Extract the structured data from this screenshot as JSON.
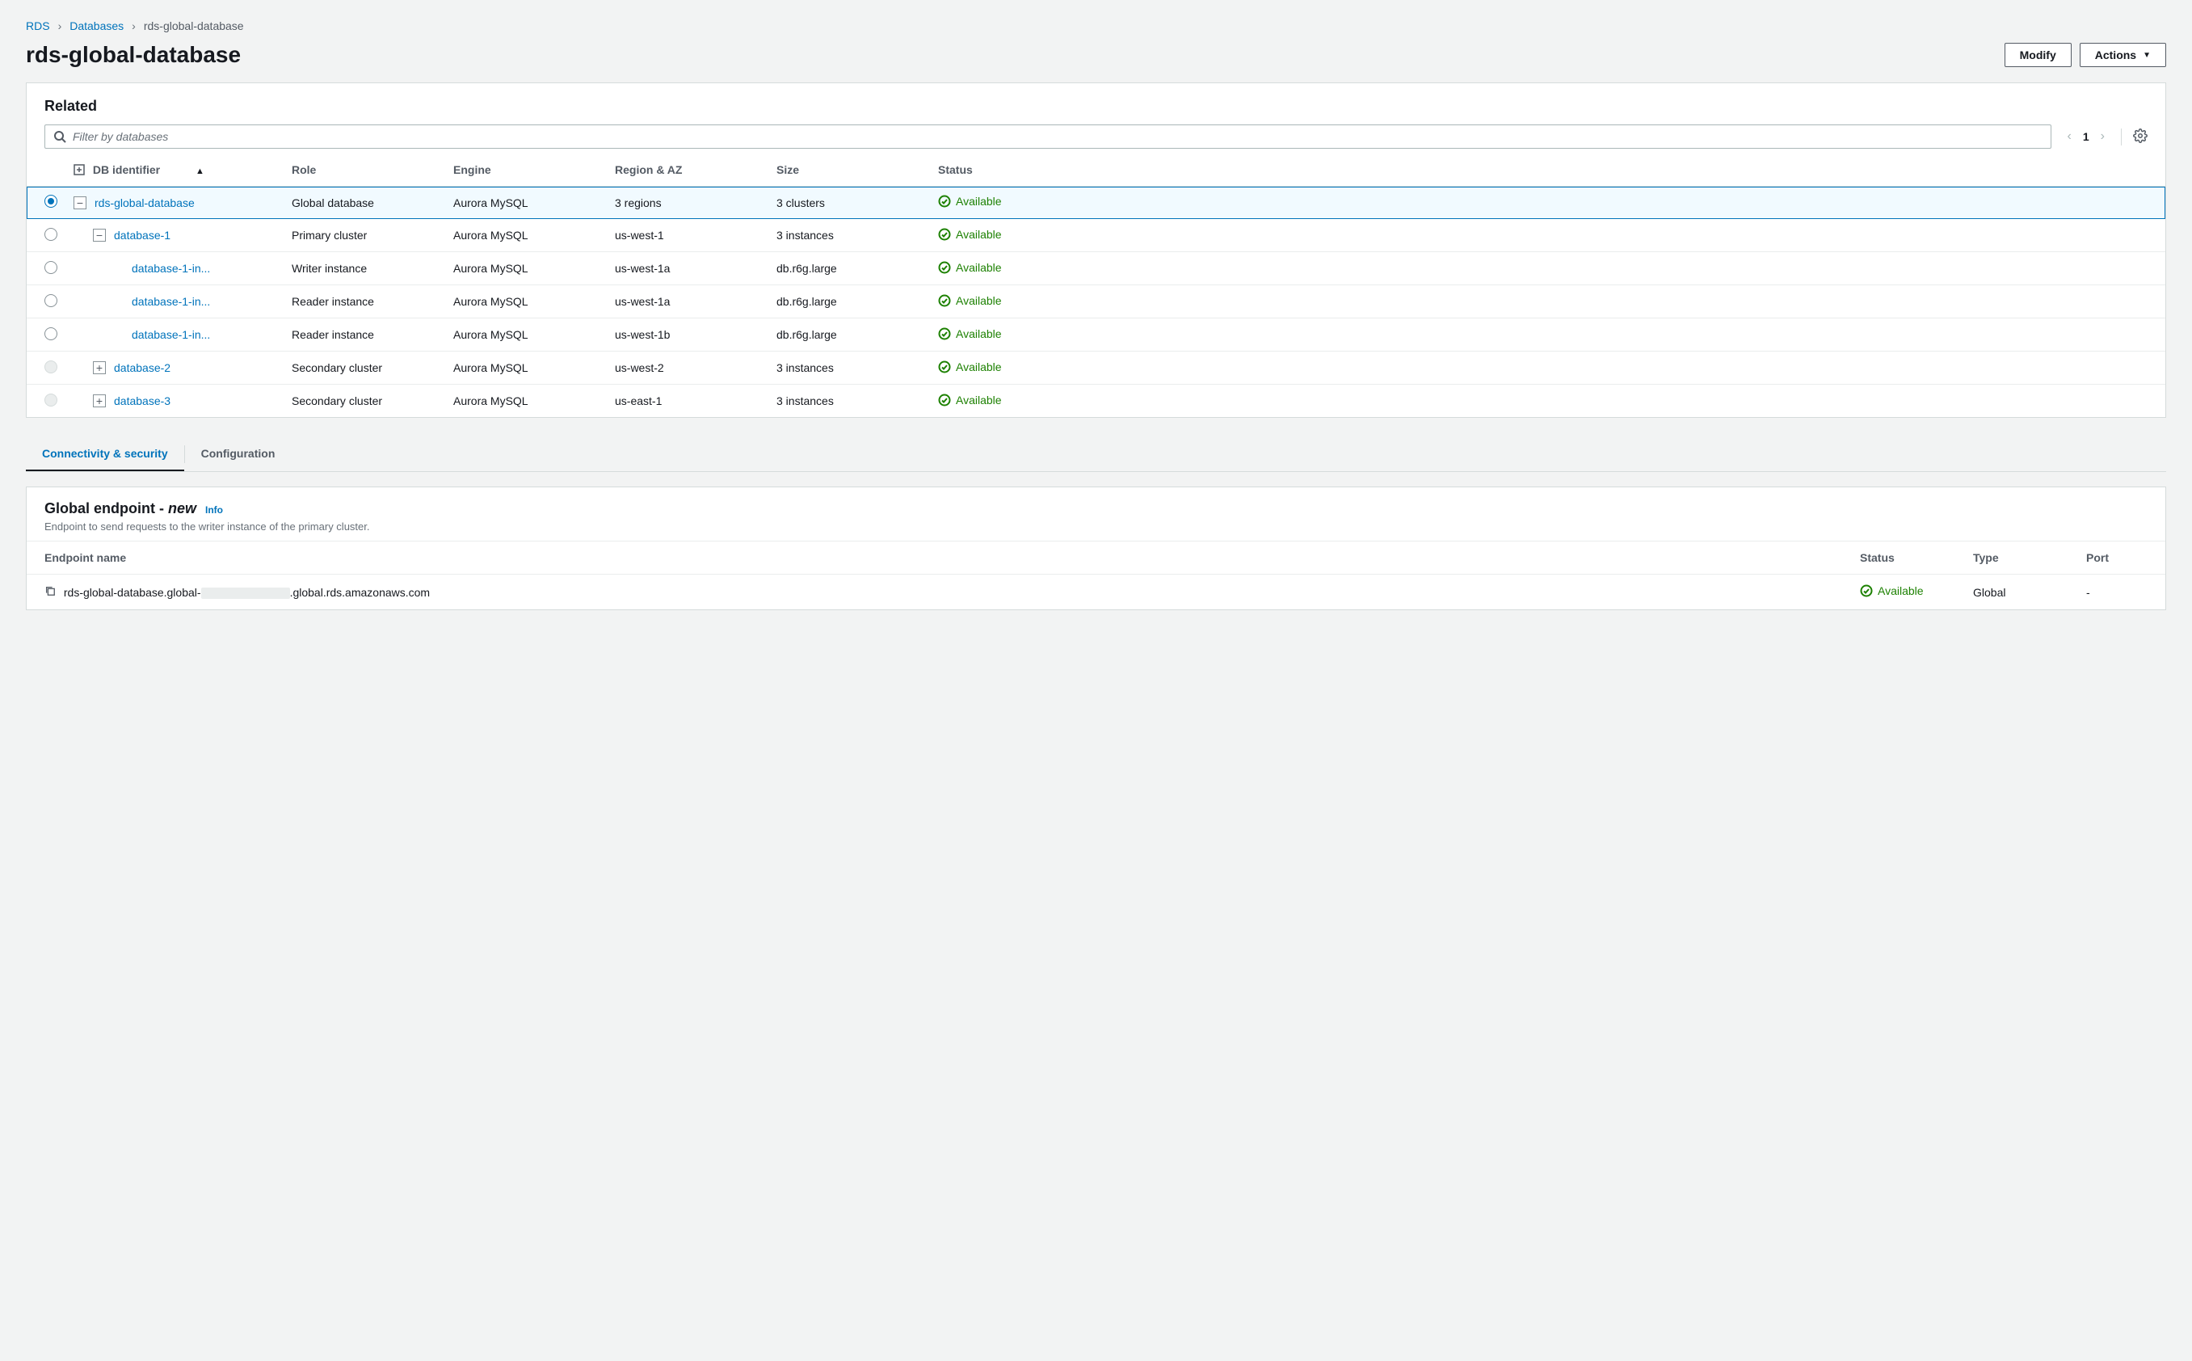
{
  "breadcrumb": {
    "root": "RDS",
    "parent": "Databases",
    "current": "rds-global-database"
  },
  "page": {
    "title": "rds-global-database"
  },
  "actions": {
    "modify": "Modify",
    "actions": "Actions"
  },
  "related": {
    "title": "Related",
    "filter_placeholder": "Filter by databases",
    "page_number": "1",
    "columns": {
      "db_identifier": "DB identifier",
      "role": "Role",
      "engine": "Engine",
      "region_az": "Region & AZ",
      "size": "Size",
      "status": "Status"
    },
    "rows": [
      {
        "selected": true,
        "radio": "checked",
        "indent": 0,
        "tree": "expanded",
        "id": "rds-global-database",
        "role": "Global database",
        "engine": "Aurora MySQL",
        "region": "3 regions",
        "size": "3 clusters",
        "status": "Available"
      },
      {
        "selected": false,
        "radio": "empty",
        "indent": 1,
        "tree": "expanded",
        "id": "database-1",
        "role": "Primary cluster",
        "engine": "Aurora MySQL",
        "region": "us-west-1",
        "size": "3 instances",
        "status": "Available"
      },
      {
        "selected": false,
        "radio": "empty",
        "indent": 2,
        "tree": "none",
        "id": "database-1-in...",
        "role": "Writer instance",
        "engine": "Aurora MySQL",
        "region": "us-west-1a",
        "size": "db.r6g.large",
        "status": "Available"
      },
      {
        "selected": false,
        "radio": "empty",
        "indent": 2,
        "tree": "none",
        "id": "database-1-in...",
        "role": "Reader instance",
        "engine": "Aurora MySQL",
        "region": "us-west-1a",
        "size": "db.r6g.large",
        "status": "Available"
      },
      {
        "selected": false,
        "radio": "empty",
        "indent": 2,
        "tree": "none",
        "id": "database-1-in...",
        "role": "Reader instance",
        "engine": "Aurora MySQL",
        "region": "us-west-1b",
        "size": "db.r6g.large",
        "status": "Available"
      },
      {
        "selected": false,
        "radio": "disabled",
        "indent": 1,
        "tree": "collapsed",
        "id": "database-2",
        "role": "Secondary cluster",
        "engine": "Aurora MySQL",
        "region": "us-west-2",
        "size": "3 instances",
        "status": "Available"
      },
      {
        "selected": false,
        "radio": "disabled",
        "indent": 1,
        "tree": "collapsed",
        "id": "database-3",
        "role": "Secondary cluster",
        "engine": "Aurora MySQL",
        "region": "us-east-1",
        "size": "3 instances",
        "status": "Available"
      }
    ]
  },
  "tabs": {
    "connectivity": "Connectivity & security",
    "configuration": "Configuration"
  },
  "endpoint": {
    "title_prefix": "Global endpoint - ",
    "title_new": "new",
    "info": "Info",
    "description": "Endpoint to send requests to the writer instance of the primary cluster.",
    "columns": {
      "name": "Endpoint name",
      "status": "Status",
      "type": "Type",
      "port": "Port"
    },
    "row": {
      "name_prefix": "rds-global-database.global-",
      "name_suffix": ".global.rds.amazonaws.com",
      "status": "Available",
      "type": "Global",
      "port": "-"
    }
  },
  "colors": {
    "link": "#0073bb",
    "success": "#1d8102",
    "background": "#f2f3f3",
    "border": "#d5dbdb",
    "text_muted": "#545b64"
  }
}
